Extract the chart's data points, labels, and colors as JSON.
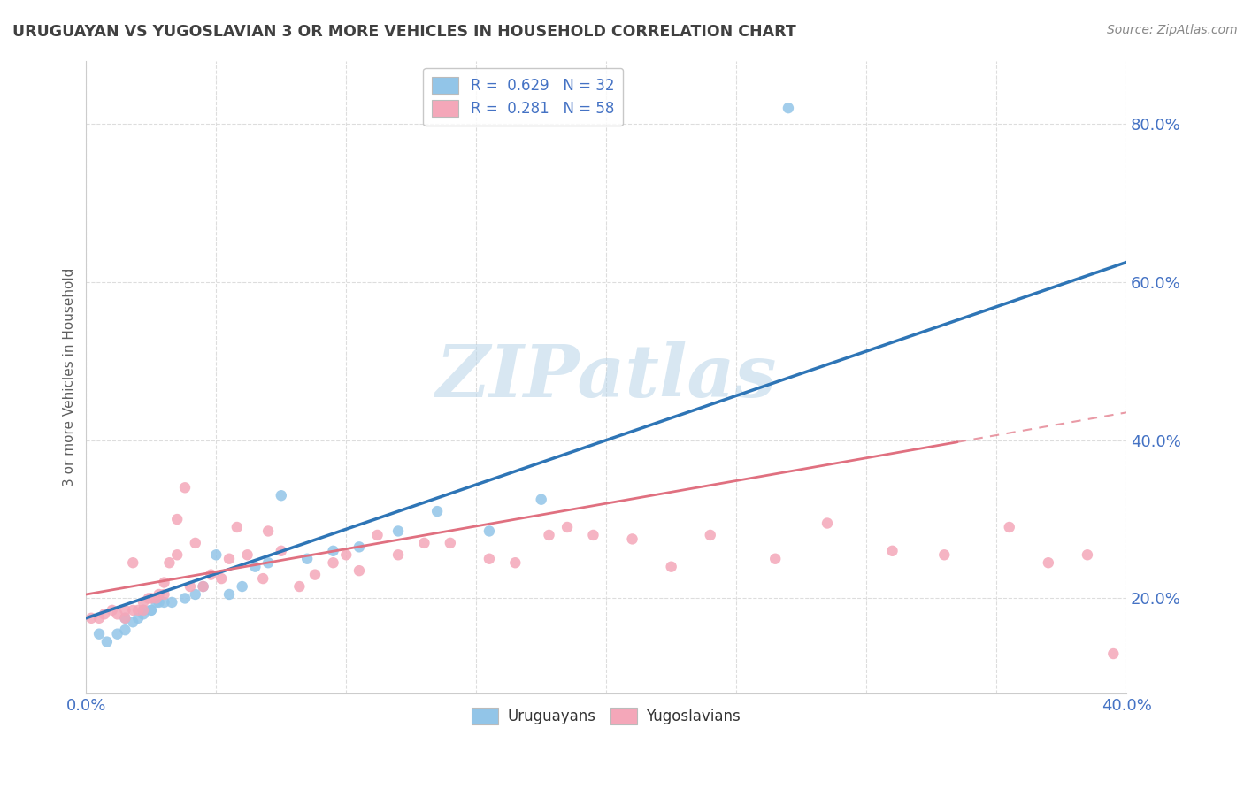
{
  "title": "URUGUAYAN VS YUGOSLAVIAN 3 OR MORE VEHICLES IN HOUSEHOLD CORRELATION CHART",
  "source": "Source: ZipAtlas.com",
  "ylabel": "3 or more Vehicles in Household",
  "ytick_labels": [
    "20.0%",
    "40.0%",
    "60.0%",
    "80.0%"
  ],
  "ytick_values": [
    0.2,
    0.4,
    0.6,
    0.8
  ],
  "xlim": [
    0.0,
    0.4
  ],
  "ylim": [
    0.08,
    0.88
  ],
  "legend_uruguayan": "R =  0.629   N = 32",
  "legend_yugoslavian": "R =  0.281   N = 58",
  "uruguayan_color": "#92C5E8",
  "yugoslavian_color": "#F4A7B9",
  "trend_uruguayan_color": "#2E75B6",
  "trend_yugoslavian_color": "#E07080",
  "trend_yugoslavian_dash_color": "#C0A0A8",
  "background_color": "#FFFFFF",
  "watermark": "ZIPatlas",
  "uruguayan_x": [
    0.005,
    0.008,
    0.012,
    0.015,
    0.015,
    0.018,
    0.02,
    0.022,
    0.022,
    0.025,
    0.025,
    0.027,
    0.028,
    0.03,
    0.033,
    0.038,
    0.042,
    0.045,
    0.05,
    0.055,
    0.06,
    0.065,
    0.07,
    0.075,
    0.085,
    0.095,
    0.105,
    0.12,
    0.135,
    0.155,
    0.175,
    0.27
  ],
  "uruguayan_y": [
    0.155,
    0.145,
    0.155,
    0.16,
    0.175,
    0.17,
    0.175,
    0.18,
    0.185,
    0.185,
    0.185,
    0.195,
    0.195,
    0.195,
    0.195,
    0.2,
    0.205,
    0.215,
    0.255,
    0.205,
    0.215,
    0.24,
    0.245,
    0.33,
    0.25,
    0.26,
    0.265,
    0.285,
    0.31,
    0.285,
    0.325,
    0.82
  ],
  "yugoslavian_x": [
    0.002,
    0.005,
    0.007,
    0.01,
    0.012,
    0.015,
    0.015,
    0.018,
    0.018,
    0.02,
    0.022,
    0.022,
    0.024,
    0.025,
    0.027,
    0.028,
    0.03,
    0.03,
    0.032,
    0.035,
    0.035,
    0.038,
    0.04,
    0.042,
    0.045,
    0.048,
    0.052,
    0.055,
    0.058,
    0.062,
    0.068,
    0.07,
    0.075,
    0.082,
    0.088,
    0.095,
    0.1,
    0.105,
    0.112,
    0.12,
    0.13,
    0.14,
    0.155,
    0.165,
    0.178,
    0.185,
    0.195,
    0.21,
    0.225,
    0.24,
    0.265,
    0.285,
    0.31,
    0.33,
    0.355,
    0.37,
    0.385,
    0.395
  ],
  "yugoslavian_y": [
    0.175,
    0.175,
    0.18,
    0.185,
    0.18,
    0.175,
    0.185,
    0.185,
    0.245,
    0.185,
    0.185,
    0.195,
    0.2,
    0.2,
    0.2,
    0.205,
    0.205,
    0.22,
    0.245,
    0.255,
    0.3,
    0.34,
    0.215,
    0.27,
    0.215,
    0.23,
    0.225,
    0.25,
    0.29,
    0.255,
    0.225,
    0.285,
    0.26,
    0.215,
    0.23,
    0.245,
    0.255,
    0.235,
    0.28,
    0.255,
    0.27,
    0.27,
    0.25,
    0.245,
    0.28,
    0.29,
    0.28,
    0.275,
    0.24,
    0.28,
    0.25,
    0.295,
    0.26,
    0.255,
    0.29,
    0.245,
    0.255,
    0.13
  ],
  "trend_u_x0": 0.0,
  "trend_u_x1": 0.4,
  "trend_u_y0": 0.175,
  "trend_u_y1": 0.625,
  "trend_y_x0": 0.0,
  "trend_y_x1": 0.4,
  "trend_y_y0": 0.205,
  "trend_y_y1": 0.435,
  "grid_color": "#DDDDDD",
  "spine_color": "#CCCCCC",
  "tick_color": "#4472C4",
  "title_color": "#404040",
  "source_color": "#888888",
  "ylabel_color": "#606060"
}
